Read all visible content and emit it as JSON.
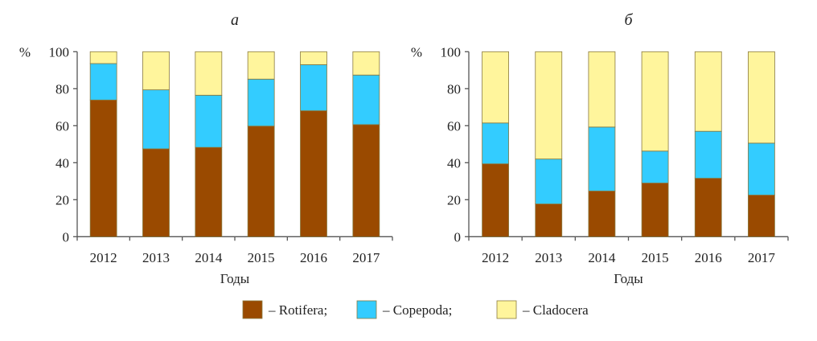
{
  "chart_data": [
    {
      "type": "bar",
      "stacked": true,
      "title": "а",
      "xlabel": "Годы",
      "ylabel": "%",
      "ylim": [
        0,
        100
      ],
      "yticks": [
        0,
        20,
        40,
        60,
        80,
        100
      ],
      "categories": [
        "2012",
        "2013",
        "2014",
        "2015",
        "2016",
        "2017"
      ],
      "series": [
        {
          "name": "Rotifera",
          "values": [
            73.9,
            47.5,
            48.3,
            59.8,
            68.1,
            60.6
          ]
        },
        {
          "name": "Copepoda",
          "values": [
            19.7,
            31.9,
            28.2,
            25.4,
            24.9,
            26.8
          ]
        },
        {
          "name": "Cladocera",
          "values": [
            6.4,
            20.6,
            23.5,
            14.8,
            7.0,
            12.6
          ]
        }
      ]
    },
    {
      "type": "bar",
      "stacked": true,
      "title": "б",
      "xlabel": "Годы",
      "ylabel": "%",
      "ylim": [
        0,
        100
      ],
      "yticks": [
        0,
        20,
        40,
        60,
        80,
        100
      ],
      "categories": [
        "2012",
        "2013",
        "2014",
        "2015",
        "2016",
        "2017"
      ],
      "series": [
        {
          "name": "Rotifera",
          "values": [
            39.4,
            17.7,
            24.7,
            29.0,
            31.6,
            22.5
          ]
        },
        {
          "name": "Copepoda",
          "values": [
            22.1,
            24.3,
            34.6,
            17.3,
            25.4,
            28.1
          ]
        },
        {
          "name": "Cladocera",
          "values": [
            38.5,
            58.0,
            40.7,
            53.7,
            43.0,
            49.4
          ]
        }
      ]
    }
  ],
  "colors": {
    "Rotifera": "#9a4a00",
    "Copepoda": "#33ccff",
    "Cladocera": "#fff59c",
    "edge": "#8a7a40",
    "axis": "#555555"
  },
  "legend": [
    {
      "label": "– Rotifera;"
    },
    {
      "label": "– Copepoda;"
    },
    {
      "label": "– Cladocera"
    }
  ]
}
